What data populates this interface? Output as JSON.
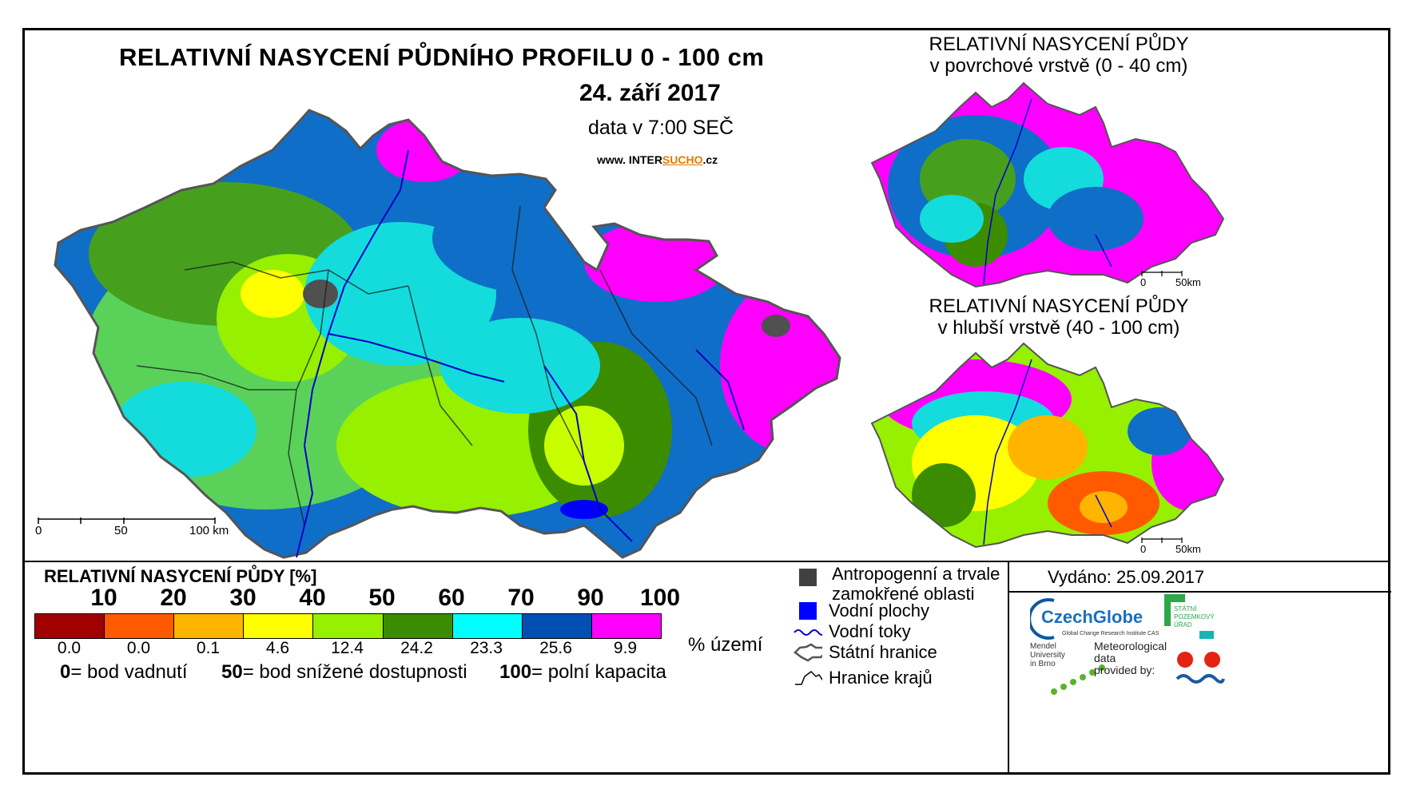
{
  "main_map": {
    "title": "RELATIVNÍ NASYCENÍ PŮDNÍHO PROFILU 0 - 100 cm",
    "date": "24. září 2017",
    "data_time": "data v 7:00 SEČ",
    "website_prefix": "www. INTER",
    "website_highlight": "SUCHO",
    "website_suffix": ".cz",
    "scale": {
      "ticks": [
        "0",
        "50",
        "100 km"
      ]
    }
  },
  "inset_surface": {
    "title_line1": "RELATIVNÍ NASYCENÍ PŮDY",
    "title_line2": "v povrchové vrstvě (0 - 40 cm)",
    "scale": {
      "ticks": [
        "0",
        "50km"
      ]
    }
  },
  "inset_deep": {
    "title_line1": "RELATIVNÍ NASYCENÍ PŮDY",
    "title_line2": "v hlubší vrstvě (40 - 100 cm)",
    "scale": {
      "ticks": [
        "0",
        "50km"
      ]
    }
  },
  "legend": {
    "title": "RELATIVNÍ NASYCENÍ PŮDY [%]",
    "thresholds": [
      "10",
      "20",
      "30",
      "40",
      "50",
      "60",
      "70",
      "90",
      "100"
    ],
    "classes": [
      {
        "color": "#a00000",
        "percent": "0.0"
      },
      {
        "color": "#ff5a00",
        "percent": "0.0"
      },
      {
        "color": "#ffb400",
        "percent": "0.1"
      },
      {
        "color": "#ffff00",
        "percent": "4.6"
      },
      {
        "color": "#96f000",
        "percent": "12.4"
      },
      {
        "color": "#3c8c00",
        "percent": "24.2"
      },
      {
        "color": "#00ffff",
        "percent": "23.3"
      },
      {
        "color": "#0050b4",
        "percent": "25.6"
      },
      {
        "color": "#ff00ff",
        "percent": "9.9"
      }
    ],
    "percent_unit": "% území",
    "notes": [
      {
        "value": "0",
        "text": "= bod vadnutí"
      },
      {
        "value": "50",
        "text": "= bod snížené dostupnosti"
      },
      {
        "value": "100",
        "text": "= polní kapacita"
      }
    ]
  },
  "symbols": {
    "anthropogenic_line1": "Antropogenní a trvale",
    "anthropogenic_line2": "zamokřené oblasti",
    "water_bodies": "Vodní plochy",
    "water_streams": "Vodní toky",
    "state_border": "Státní hranice",
    "region_border": "Hranice krajů",
    "anthropogenic_color": "#404040",
    "water_body_color": "#0000ff",
    "stream_color": "#0000c8"
  },
  "issued": "Vydáno: 25.09.2017",
  "logos": {
    "czechglobe": "CzechGlobe",
    "czechglobe_sub": "Global Change Research Institute CAS",
    "szu_line1": "STÁTNÍ",
    "szu_line2": "POZEMKOVÝ",
    "szu_line3": "ÚŘAD",
    "mendel_line1": "Mendel",
    "mendel_line2": "University",
    "mendel_line3": "in Brno",
    "meteo_line1": "Meteorological",
    "meteo_line2": "data",
    "meteo_line3": "provided by:"
  }
}
